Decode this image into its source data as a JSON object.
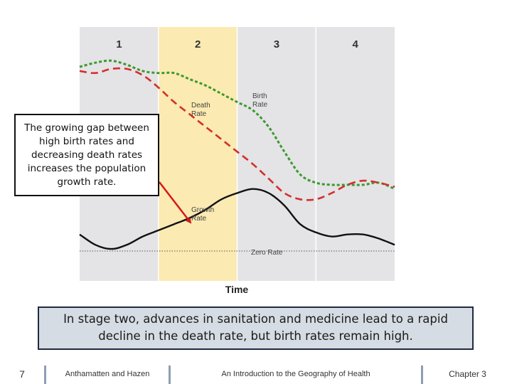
{
  "chart_data": {
    "type": "line",
    "title": "",
    "xlabel": "Time",
    "ylabel": "",
    "stages": [
      "1",
      "2",
      "3",
      "4"
    ],
    "highlighted_stage": "2",
    "x": [
      0,
      25,
      50,
      75,
      100,
      125,
      150,
      175,
      200,
      225,
      250,
      275,
      300,
      325,
      350,
      375,
      400,
      425,
      450,
      475,
      500
    ],
    "ylim": [
      0,
      100
    ],
    "series": [
      {
        "name": "Birth Rate",
        "label": "Birth\nRate",
        "color": "#3a9a2e",
        "dash": "dotted",
        "values": [
          89,
          91,
          92,
          90,
          87,
          86,
          86,
          83,
          80,
          76,
          72,
          68,
          60,
          48,
          37,
          33,
          32,
          32,
          32,
          33,
          30
        ]
      },
      {
        "name": "Death Rate",
        "label": "Death\nRate",
        "color": "#d32f2a",
        "dash": "dashed",
        "values": [
          87,
          86,
          88,
          88,
          85,
          79,
          72,
          66,
          60,
          54,
          48,
          42,
          35,
          28,
          25,
          25,
          28,
          32,
          34,
          33,
          31
        ]
      },
      {
        "name": "Growth Rate",
        "label": "Growth\nRate",
        "color": "#111111",
        "dash": "solid",
        "values": [
          8,
          3,
          1,
          3,
          7,
          10,
          13,
          16,
          20,
          25,
          28,
          30,
          28,
          22,
          13,
          9,
          7,
          8,
          8,
          6,
          3
        ]
      },
      {
        "name": "Zero Rate",
        "label": "Zero Rate",
        "color": "#555555",
        "dash": "fine",
        "values": [
          0,
          0,
          0,
          0,
          0,
          0,
          0,
          0,
          0,
          0,
          0,
          0,
          0,
          0,
          0,
          0,
          0,
          0,
          0,
          0,
          0
        ]
      }
    ],
    "annotation": "The growing gap between high birth rates and decreasing death rates increases the population growth rate."
  },
  "caption": "In stage two, advances in sanitation and medicine lead to a rapid decline in the death rate, but birth rates remain high.",
  "footer": {
    "slide_number": "7",
    "authors": "Anthamatten and Hazen",
    "book_title": "An Introduction to the Geography of Health",
    "chapter": "Chapter 3"
  },
  "colors": {
    "plot_background": "#e4e3e6",
    "highlight": "#fbeab1",
    "arrow": "#d21a1a",
    "caption_background": "#d6dce4",
    "caption_border": "#1f2a44",
    "footer_divider": "#8e9db3"
  }
}
